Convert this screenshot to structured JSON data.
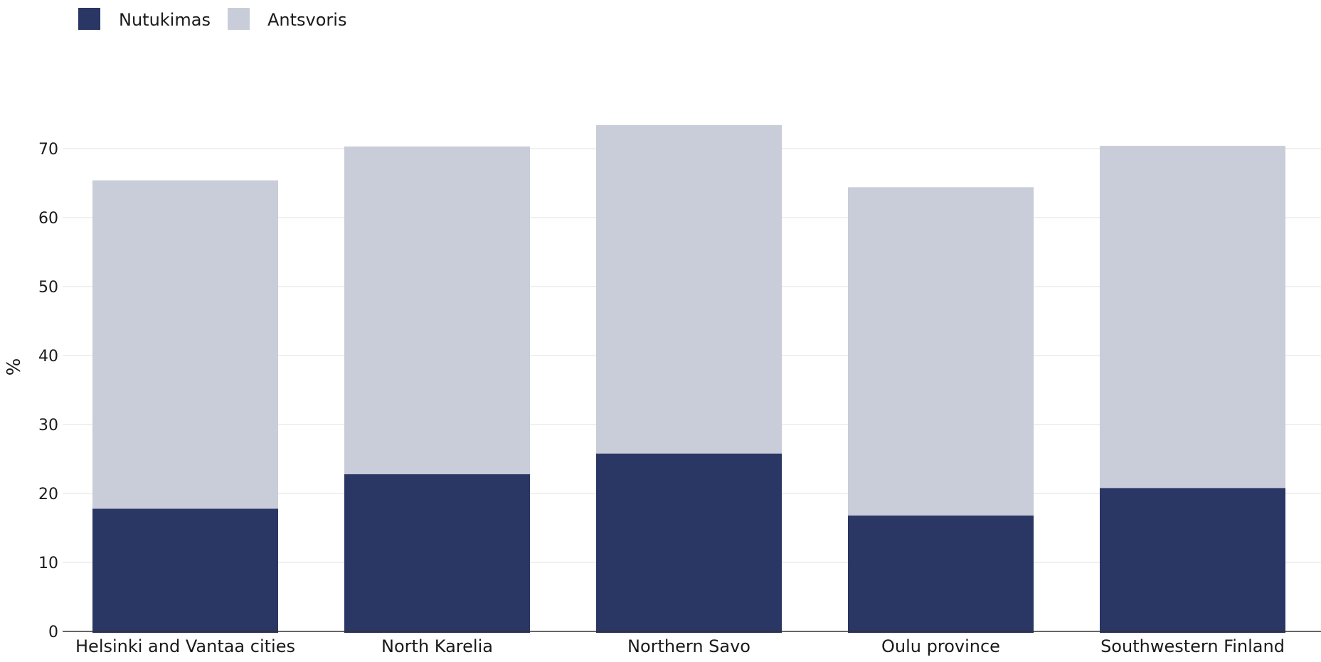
{
  "chart_data": {
    "type": "bar",
    "stacked": true,
    "categories": [
      "Helsinki and Vantaa cities",
      "North Karelia",
      "Northern Savo",
      "Oulu province",
      "Southwestern Finland"
    ],
    "series": [
      {
        "name": "Nutukimas",
        "color": "#2a3664",
        "values": [
          17.8,
          22.8,
          25.8,
          16.8,
          20.8
        ]
      },
      {
        "name": "Antsvoris",
        "color": "#c9ccd9",
        "values": [
          47.6,
          47.5,
          47.6,
          47.6,
          49.6
        ]
      }
    ],
    "ylabel": "%",
    "ylim": [
      0,
      75
    ],
    "yticks": [
      0,
      10,
      20,
      30,
      40,
      50,
      60,
      70
    ],
    "grid": true,
    "legend_position": "top-left"
  }
}
